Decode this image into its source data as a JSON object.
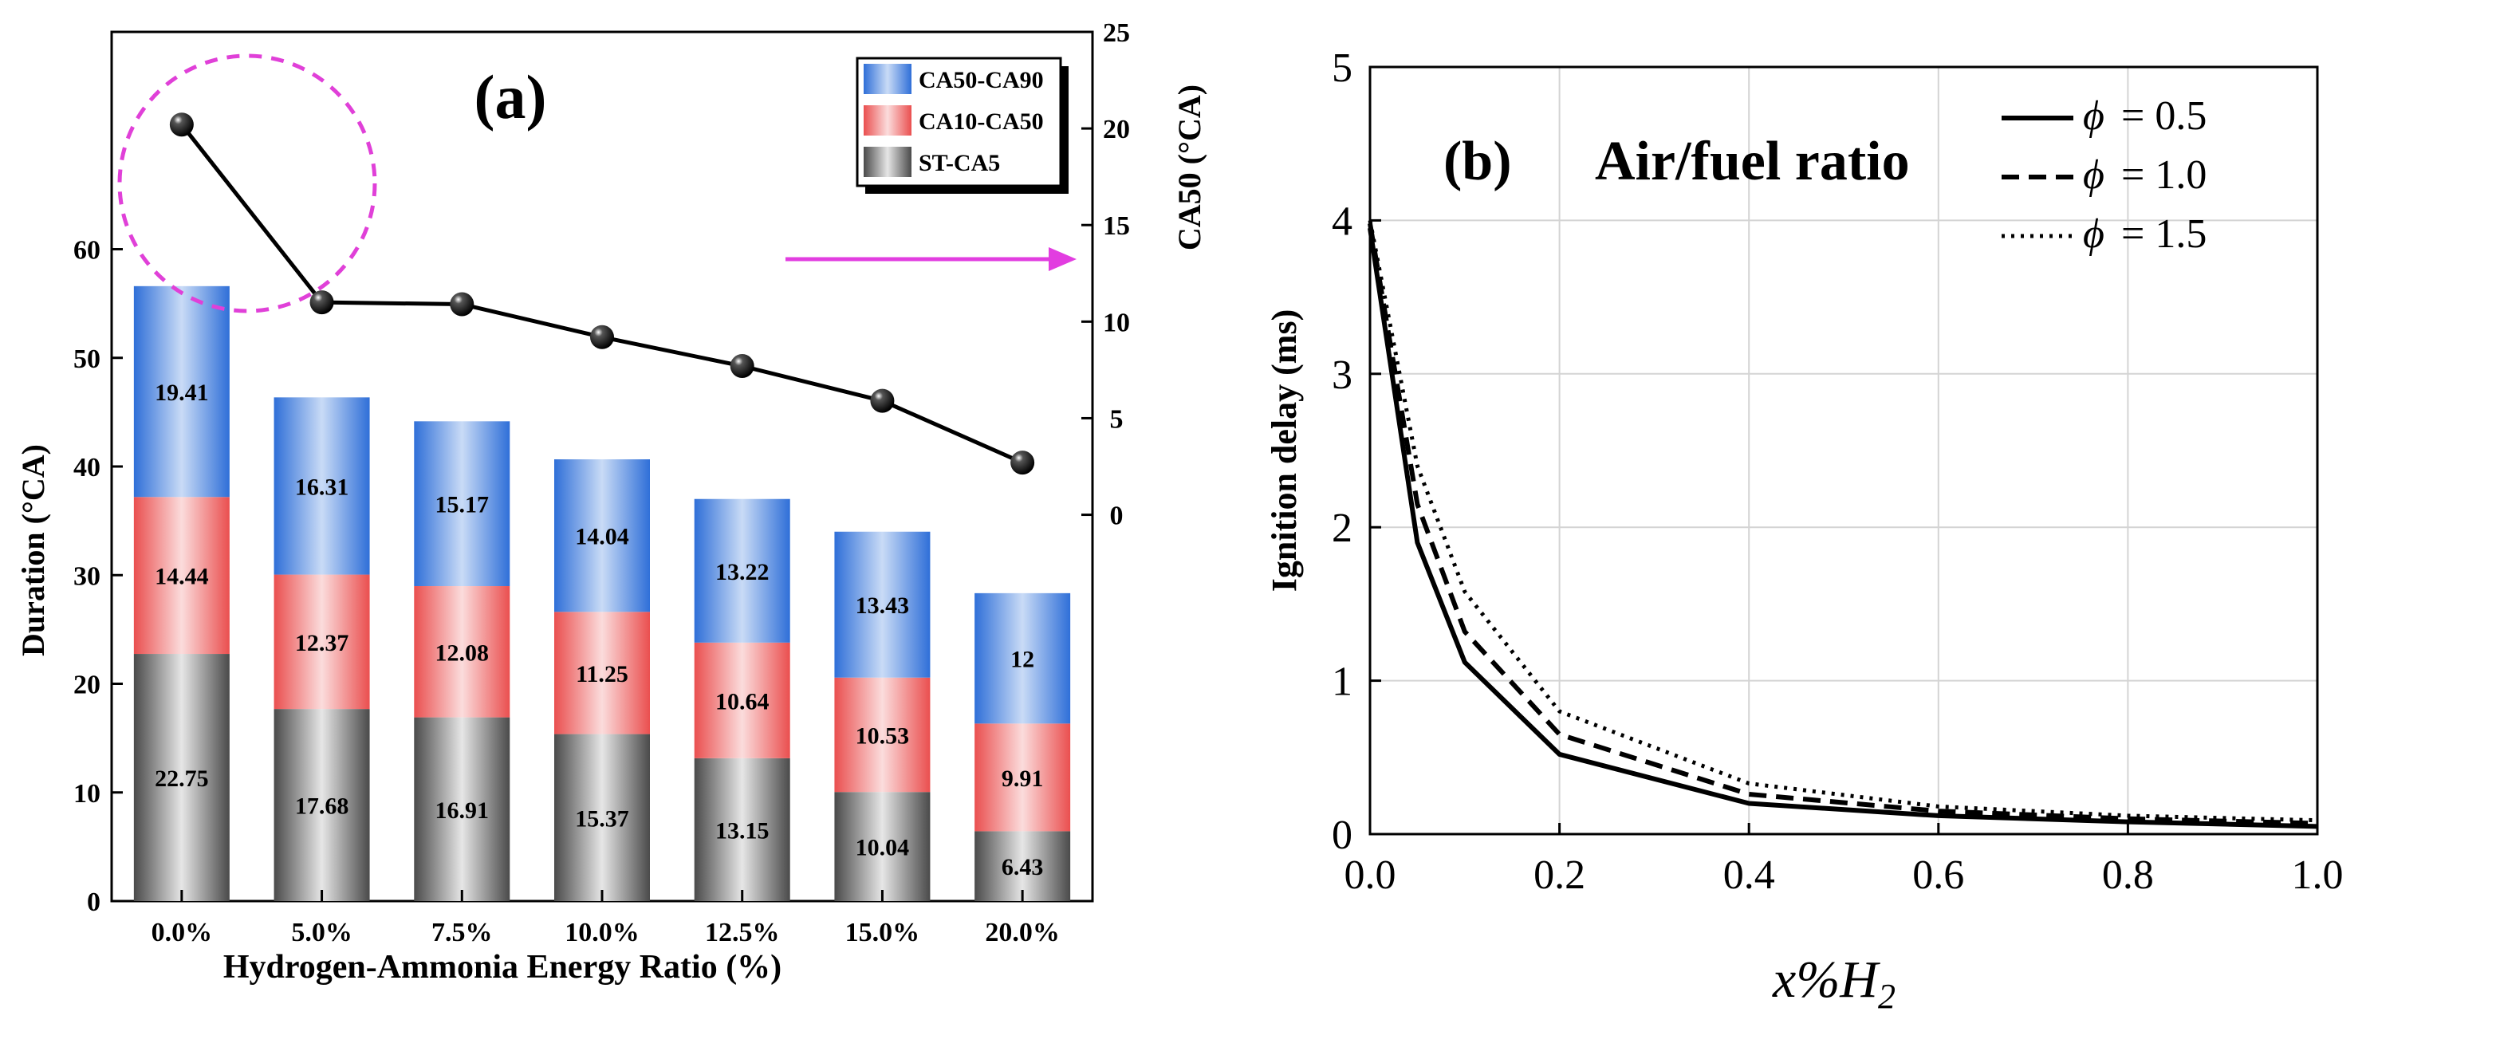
{
  "chart_data": [
    {
      "panel": "(a)",
      "type": "bar",
      "stacked": true,
      "categories": [
        "0.0%",
        "5.0%",
        "7.5%",
        "10.0%",
        "12.5%",
        "15.0%",
        "20.0%"
      ],
      "series": [
        {
          "name": "ST-CA5",
          "values": [
            22.75,
            17.68,
            16.91,
            15.37,
            13.15,
            10.04,
            6.43
          ],
          "labels": [
            "22.75",
            "17.68",
            "16.91",
            "15.37",
            "13.15",
            "10.04",
            "6.43"
          ]
        },
        {
          "name": "CA10-CA50",
          "values": [
            14.44,
            12.37,
            12.08,
            11.25,
            10.64,
            10.53,
            9.91
          ],
          "labels": [
            "14.44",
            "12.37",
            "12.08",
            "11.25",
            "10.64",
            "10.53",
            "9.91"
          ]
        },
        {
          "name": "CA50-CA90",
          "values": [
            19.41,
            16.31,
            15.17,
            14.04,
            13.22,
            13.43,
            12
          ],
          "labels": [
            "19.41",
            "16.31",
            "15.17",
            "14.04",
            "13.22",
            "13.43",
            "12"
          ]
        }
      ],
      "legend": [
        "CA50-CA90",
        "CA10-CA50",
        "ST-CA5"
      ],
      "xlabel": "Hydrogen-Ammonia Energy Ratio (%)",
      "ylabel": "Duration (°CA)",
      "ylim": [
        0,
        80
      ],
      "yticks": [
        "0",
        "10",
        "20",
        "30",
        "40",
        "50",
        "60"
      ],
      "secondary_axis": {
        "ylabel": "CA50 (°CA)",
        "ylim": [
          -20,
          25
        ],
        "yticks": [
          "0",
          "5",
          "10",
          "15",
          "20",
          "25"
        ],
        "type": "line",
        "values": [
          20.2,
          11,
          10.9,
          9.2,
          7.7,
          5.9,
          2.7
        ]
      },
      "colors": {
        "ca50_ca90": "#3f7ee0",
        "ca10_ca50": "#ea5b5b",
        "st_ca5": "#707070",
        "circle": "#e040d8",
        "arrow": "#e23de0"
      }
    },
    {
      "panel": "(b)",
      "type": "line",
      "title": "Air/fuel ratio",
      "x": [
        0,
        0.05,
        0.1,
        0.2,
        0.4,
        0.6,
        0.8,
        1.0
      ],
      "series": [
        {
          "name": "phi = 0.5",
          "legend_symbol": "ϕ",
          "legend_value": "= 0.5",
          "style": "solid",
          "values": [
            3.95,
            1.9,
            1.12,
            0.52,
            0.2,
            0.12,
            0.08,
            0.05
          ]
        },
        {
          "name": "phi = 1.0",
          "legend_symbol": "ϕ",
          "legend_value": "= 1.0",
          "style": "dashed",
          "values": [
            3.98,
            2.15,
            1.32,
            0.65,
            0.26,
            0.15,
            0.1,
            0.07
          ]
        },
        {
          "name": "phi = 1.5",
          "legend_symbol": "ϕ",
          "legend_value": "= 1.5",
          "style": "dotted",
          "values": [
            4.0,
            2.4,
            1.58,
            0.8,
            0.33,
            0.18,
            0.12,
            0.09
          ]
        }
      ],
      "xlabel_main": "x%H",
      "xlabel_sub": "2",
      "ylabel": "Ignition delay (ms)",
      "xlim": [
        0,
        1.0
      ],
      "ylim": [
        0,
        5
      ],
      "xticks": [
        "0.0",
        "0.2",
        "0.4",
        "0.6",
        "0.8",
        "1.0"
      ],
      "yticks": [
        "0",
        "1",
        "2",
        "3",
        "4",
        "5"
      ],
      "grid": true
    }
  ]
}
